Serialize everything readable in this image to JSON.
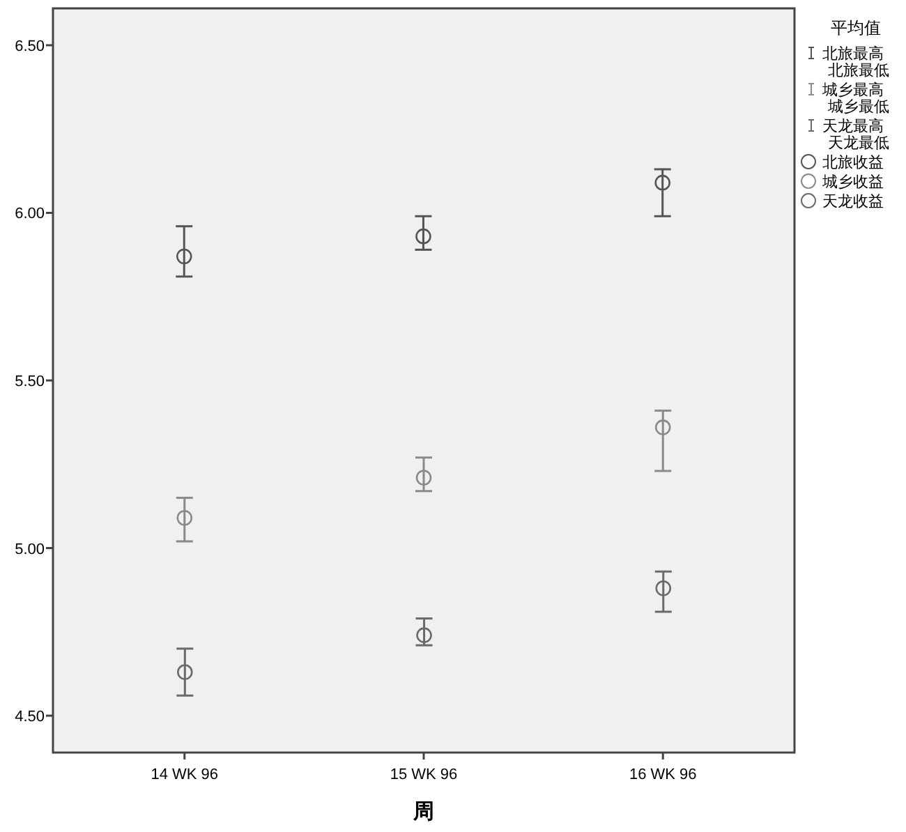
{
  "chart_data": {
    "type": "scatter",
    "xlabel": "周",
    "legend_title": "平均值",
    "legend": "right",
    "grid": false,
    "marker": "circle",
    "categories": [
      "14 WK 96",
      "15 WK 96",
      "16 WK 96"
    ],
    "ylim": [
      4.39,
      6.61
    ],
    "yticks": [
      {
        "value": 4.5,
        "label": "4.50"
      },
      {
        "value": 5.0,
        "label": "5.00"
      },
      {
        "value": 5.5,
        "label": "5.50"
      },
      {
        "value": 6.0,
        "label": "6.00"
      },
      {
        "value": 6.5,
        "label": "6.50"
      }
    ],
    "annotations": [
      "北旅最高",
      "北旅最低",
      "城乡最高",
      "城乡最低",
      "天龙最高",
      "天龙最低"
    ],
    "series": [
      {
        "name": "北旅收益",
        "color": "#555555",
        "values": [
          5.87,
          5.93,
          6.09
        ],
        "errors": [
          [
            5.81,
            5.96
          ],
          [
            5.89,
            5.99
          ],
          [
            5.99,
            6.13
          ]
        ]
      },
      {
        "name": "城乡收益",
        "color": "#8a8a8a",
        "values": [
          5.09,
          5.21,
          5.36
        ],
        "errors": [
          [
            5.02,
            5.15
          ],
          [
            5.17,
            5.27
          ],
          [
            5.23,
            5.41
          ]
        ]
      },
      {
        "name": "天龙收益",
        "color": "#6a6a6a",
        "values": [
          4.63,
          4.74,
          4.88
        ],
        "errors": [
          [
            4.56,
            4.7
          ],
          [
            4.71,
            4.79
          ],
          [
            4.81,
            4.93
          ]
        ]
      }
    ]
  }
}
